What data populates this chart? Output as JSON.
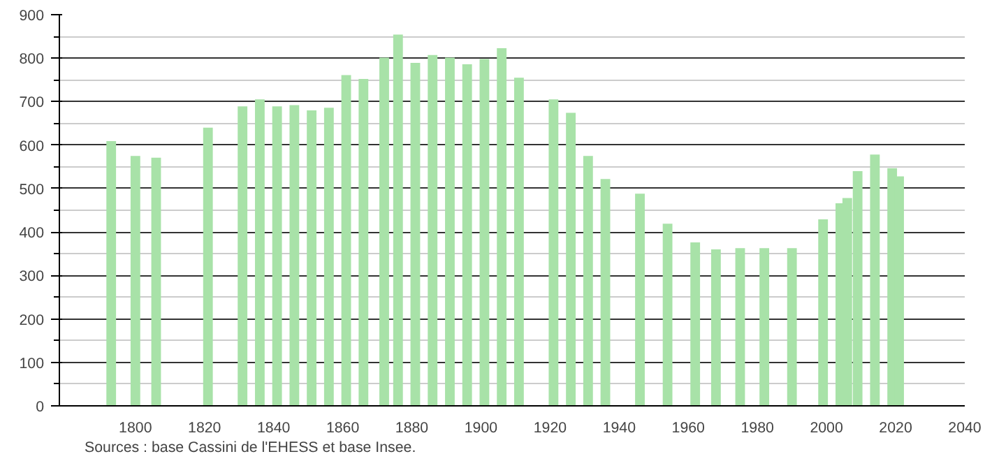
{
  "chart_data": {
    "type": "bar",
    "color": "#a8e2a8",
    "x": [
      1793,
      1800,
      1806,
      1821,
      1831,
      1836,
      1841,
      1846,
      1851,
      1856,
      1861,
      1866,
      1872,
      1876,
      1881,
      1886,
      1891,
      1896,
      1901,
      1906,
      1911,
      1921,
      1926,
      1931,
      1936,
      1946,
      1954,
      1962,
      1968,
      1975,
      1982,
      1990,
      1999,
      2004,
      2006,
      2009,
      2014,
      2019,
      2021
    ],
    "values": [
      609,
      575,
      571,
      640,
      689,
      705,
      689,
      692,
      680,
      686,
      761,
      752,
      801,
      854,
      789,
      807,
      801,
      786,
      798,
      823,
      755,
      705,
      674,
      575,
      522,
      488,
      419,
      376,
      360,
      363,
      363,
      363,
      429,
      466,
      478,
      540,
      578,
      547,
      528
    ],
    "xlim": [
      1778,
      2040
    ],
    "xticks": [
      1800,
      1820,
      1840,
      1860,
      1880,
      1900,
      1920,
      1940,
      1960,
      1980,
      2000,
      2020,
      2040
    ],
    "ylim": [
      0,
      900
    ],
    "yticks": [
      0,
      100,
      200,
      300,
      400,
      500,
      600,
      700,
      800,
      900
    ],
    "grid": "y",
    "annotations": [
      "Sources : base Cassini de l'EHESS et base Insee."
    ]
  }
}
